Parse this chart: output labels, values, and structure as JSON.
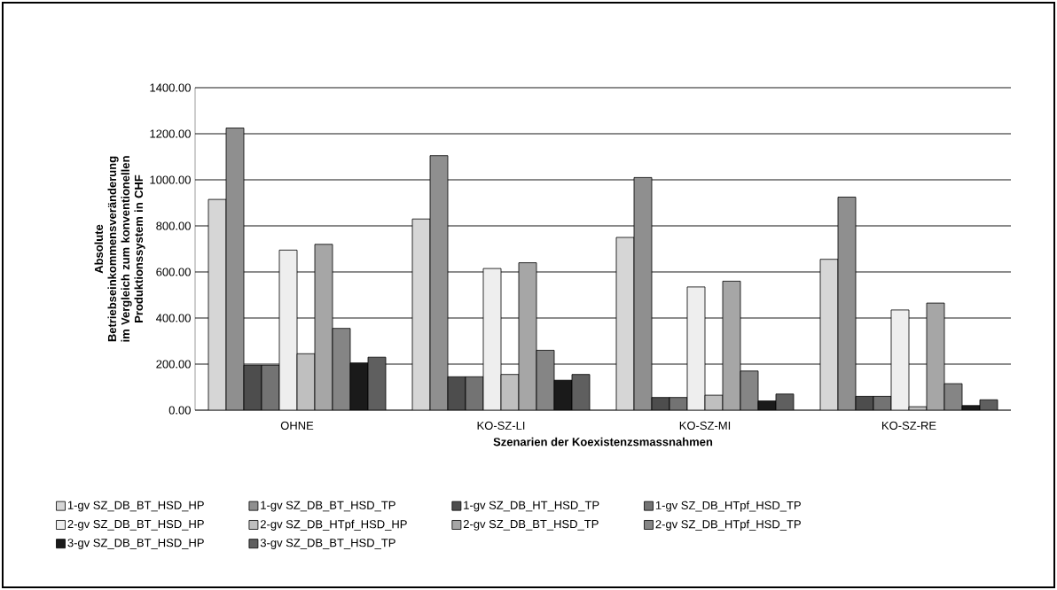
{
  "chart_data": {
    "type": "bar",
    "xlabel": "Szenarien der Koexistenzsmassnahmen",
    "ylabel": "Absolute Betriebseinkommensveränderung im Vergleich zum konventionellen Produktionssystem in CHF",
    "categories": [
      "OHNE",
      "KO-SZ-LI",
      "KO-SZ-MI",
      "KO-SZ-RE"
    ],
    "series": [
      {
        "name": "1-gv SZ_DB_BT_HSD_HP",
        "color": "#d6d6d6",
        "values": [
          915,
          830,
          750,
          655
        ]
      },
      {
        "name": "1-gv SZ_DB_BT_HSD_TP",
        "color": "#8f8f8f",
        "values": [
          1225,
          1105,
          1010,
          925
        ]
      },
      {
        "name": "1-gv SZ_DB_HT_HSD_TP",
        "color": "#4d4d4d",
        "values": [
          195,
          145,
          55,
          60
        ]
      },
      {
        "name": "1-gv SZ_DB_HTpf_HSD_TP",
        "color": "#737373",
        "values": [
          195,
          145,
          55,
          60
        ]
      },
      {
        "name": "2-gv SZ_DB_BT_HSD_HP",
        "color": "#eeeeee",
        "values": [
          695,
          615,
          535,
          435
        ]
      },
      {
        "name": "2-gv SZ_DB_HTpf_HSD_HP",
        "color": "#bfbfbf",
        "values": [
          245,
          155,
          65,
          15
        ]
      },
      {
        "name": "2-gv SZ_DB_BT_HSD_TP",
        "color": "#a6a6a6",
        "values": [
          720,
          640,
          560,
          465
        ]
      },
      {
        "name": "2-gv SZ_DB_HTpf_HSD_TP",
        "color": "#858585",
        "values": [
          355,
          260,
          170,
          115
        ]
      },
      {
        "name": "3-gv SZ_DB_BT_HSD_HP",
        "color": "#1a1a1a",
        "values": [
          205,
          130,
          40,
          20
        ]
      },
      {
        "name": "3-gv SZ_DB_BT_HSD_TP",
        "color": "#5f5f5f",
        "values": [
          230,
          155,
          70,
          45
        ]
      }
    ],
    "ylim": [
      0,
      1400
    ],
    "yticks": [
      {
        "value": 0,
        "label": "0.00"
      },
      {
        "value": 200,
        "label": "200.00"
      },
      {
        "value": 400,
        "label": "400.00"
      },
      {
        "value": 600,
        "label": "600.00"
      },
      {
        "value": 800,
        "label": "800.00"
      },
      {
        "value": 1000,
        "label": "1000.00"
      },
      {
        "value": 1200,
        "label": "1200.00"
      },
      {
        "value": 1400,
        "label": "1400.00"
      }
    ],
    "grid": "y",
    "legend": "bottom"
  }
}
